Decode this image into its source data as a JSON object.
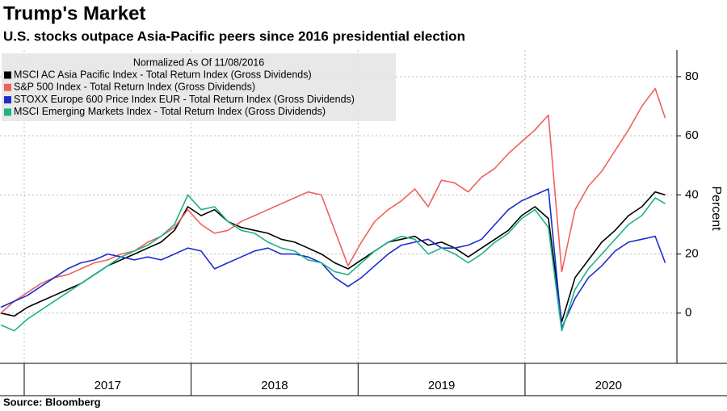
{
  "chart_data": {
    "type": "line",
    "title": "Trump's Market",
    "subtitle": "U.S. stocks outpace Asia-Pacific peers since 2016 presidential election",
    "legend_title": "Normalized As Of 11/08/2016",
    "y_label": "Percent",
    "source": "Source: Bloomberg",
    "x": [
      2016.86,
      2016.94,
      2017.02,
      2017.1,
      2017.18,
      2017.26,
      2017.34,
      2017.42,
      2017.5,
      2017.58,
      2017.66,
      2017.74,
      2017.82,
      2017.9,
      2017.98,
      2018.06,
      2018.14,
      2018.22,
      2018.3,
      2018.38,
      2018.46,
      2018.54,
      2018.62,
      2018.7,
      2018.78,
      2018.86,
      2018.94,
      2019.02,
      2019.1,
      2019.18,
      2019.26,
      2019.34,
      2019.42,
      2019.5,
      2019.58,
      2019.66,
      2019.74,
      2019.82,
      2019.9,
      2019.98,
      2020.06,
      2020.14,
      2020.22,
      2020.3,
      2020.38,
      2020.46,
      2020.54,
      2020.62,
      2020.7,
      2020.78,
      2020.84
    ],
    "series": [
      {
        "name": "MSCI AC Asia Pacific Index - Total Return Index (Gross Dividends)",
        "color": "#000000",
        "values": [
          0,
          -1,
          2,
          4,
          6,
          8,
          10,
          13,
          16,
          18,
          20,
          22,
          24,
          28,
          36,
          33,
          35,
          31,
          29,
          28,
          27,
          25,
          24,
          22,
          20,
          17,
          15,
          18,
          21,
          24,
          25,
          26,
          23,
          24,
          22,
          19,
          22,
          25,
          28,
          33,
          36,
          32,
          -3,
          12,
          18,
          24,
          28,
          33,
          36,
          41,
          40
        ]
      },
      {
        "name": "S&P 500 Index - Total Return Index (Gross Dividends)",
        "color": "#f0605e",
        "values": [
          0,
          4,
          7,
          10,
          12,
          13,
          15,
          17,
          18,
          20,
          21,
          24,
          26,
          29,
          35,
          30,
          27,
          28,
          31,
          33,
          35,
          37,
          39,
          41,
          40,
          28,
          16,
          24,
          31,
          35,
          38,
          42,
          36,
          45,
          44,
          41,
          46,
          49,
          54,
          58,
          62,
          67,
          14,
          35,
          43,
          48,
          55,
          62,
          70,
          76,
          66
        ]
      },
      {
        "name": "STOXX Europe 600 Price Index EUR - Total Return Index (Gross Dividends)",
        "color": "#1a2ecc",
        "values": [
          2,
          4,
          6,
          9,
          12,
          15,
          17,
          18,
          20,
          19,
          18,
          19,
          18,
          20,
          22,
          21,
          15,
          17,
          19,
          21,
          22,
          20,
          20,
          19,
          17,
          12,
          9,
          12,
          16,
          20,
          23,
          24,
          25,
          22,
          22,
          23,
          25,
          30,
          35,
          38,
          40,
          42,
          -5,
          5,
          12,
          16,
          21,
          24,
          25,
          26,
          17
        ]
      },
      {
        "name": "MSCI Emerging Markets Index - Total Return Index (Gross Dividends)",
        "color": "#1db387",
        "values": [
          -4,
          -6,
          -2,
          1,
          4,
          7,
          10,
          13,
          16,
          19,
          21,
          23,
          26,
          30,
          40,
          35,
          36,
          31,
          28,
          27,
          24,
          22,
          21,
          18,
          17,
          14,
          13,
          17,
          21,
          24,
          26,
          25,
          20,
          22,
          20,
          17,
          20,
          24,
          27,
          32,
          35,
          29,
          -6,
          8,
          15,
          20,
          25,
          30,
          33,
          39,
          37
        ]
      }
    ],
    "xlim": [
      2016.855,
      2020.91
    ],
    "xticks": [
      {
        "value": 2017,
        "label": "2017"
      },
      {
        "value": 2018,
        "label": "2018"
      },
      {
        "value": 2019,
        "label": "2019"
      },
      {
        "value": 2020,
        "label": "2020"
      }
    ],
    "ylim": [
      -17,
      89
    ],
    "yticks": [
      0,
      20,
      40,
      60,
      80
    ],
    "grid": true
  }
}
